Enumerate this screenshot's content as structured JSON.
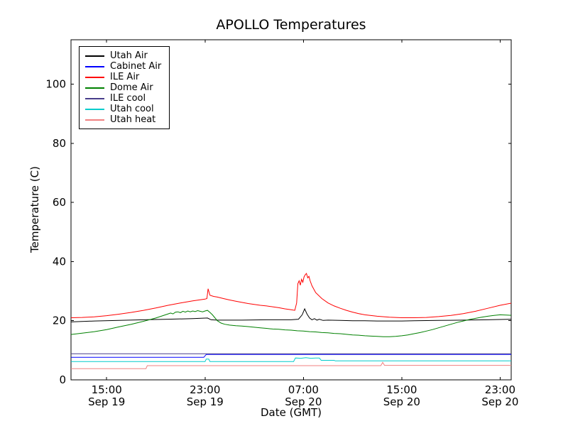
{
  "chart_data": {
    "type": "line",
    "title": "APOLLO Temperatures",
    "xlabel": "Date (GMT)",
    "ylabel": "Temperature (C)",
    "background": "#ffffff",
    "axis_color": "#000000",
    "grid": false,
    "legend_position": "upper left",
    "x_unit": "hours since Sep 19 00:00 GMT",
    "x_range": [
      12.1,
      47.9
    ],
    "y_range": [
      0,
      115
    ],
    "x_ticks": [
      {
        "t": 15,
        "line1": "15:00",
        "line2": "Sep 19"
      },
      {
        "t": 23,
        "line1": "23:00",
        "line2": "Sep 19"
      },
      {
        "t": 31,
        "line1": "07:00",
        "line2": "Sep 20"
      },
      {
        "t": 39,
        "line1": "15:00",
        "line2": "Sep 20"
      },
      {
        "t": 47,
        "line1": "23:00",
        "line2": "Sep 20"
      }
    ],
    "y_ticks": [
      {
        "v": 0,
        "label": "0"
      },
      {
        "v": 20,
        "label": "20"
      },
      {
        "v": 40,
        "label": "40"
      },
      {
        "v": 60,
        "label": "60"
      },
      {
        "v": 80,
        "label": "80"
      },
      {
        "v": 100,
        "label": "100"
      }
    ],
    "series": [
      {
        "name": "Utah Air",
        "color": "#000000",
        "points": [
          [
            12,
            19.6
          ],
          [
            14,
            19.9
          ],
          [
            16,
            20.1
          ],
          [
            18,
            20.3
          ],
          [
            20,
            20.5
          ],
          [
            22,
            20.7
          ],
          [
            23.2,
            20.9
          ],
          [
            23.5,
            20.3
          ],
          [
            24,
            20.2
          ],
          [
            26,
            20.2
          ],
          [
            28,
            20.3
          ],
          [
            30,
            20.3
          ],
          [
            30.6,
            20.5
          ],
          [
            30.9,
            22.0
          ],
          [
            31.1,
            24.0
          ],
          [
            31.3,
            22.2
          ],
          [
            31.5,
            20.9
          ],
          [
            31.7,
            20.3
          ],
          [
            31.9,
            20.7
          ],
          [
            32.1,
            20.2
          ],
          [
            32.3,
            20.5
          ],
          [
            32.6,
            20.1
          ],
          [
            33,
            20.2
          ],
          [
            34,
            20.1
          ],
          [
            35,
            20.0
          ],
          [
            36,
            20.0
          ],
          [
            37,
            19.9
          ],
          [
            38,
            19.9
          ],
          [
            39,
            19.9
          ],
          [
            40,
            20.0
          ],
          [
            42,
            20.1
          ],
          [
            44,
            20.2
          ],
          [
            46,
            20.3
          ],
          [
            48,
            20.5
          ]
        ]
      },
      {
        "name": "Cabinet Air",
        "color": "#0000ff",
        "points": [
          [
            12,
            7.6
          ],
          [
            22.9,
            7.6
          ],
          [
            23.1,
            8.6
          ],
          [
            48,
            8.6
          ]
        ]
      },
      {
        "name": "ILE Air",
        "color": "#ff0000",
        "points": [
          [
            12,
            21.0
          ],
          [
            13,
            21.1
          ],
          [
            14,
            21.3
          ],
          [
            15,
            21.7
          ],
          [
            16,
            22.2
          ],
          [
            17,
            22.8
          ],
          [
            18,
            23.5
          ],
          [
            19,
            24.3
          ],
          [
            20,
            25.2
          ],
          [
            21,
            26.0
          ],
          [
            22,
            26.7
          ],
          [
            23,
            27.3
          ],
          [
            23.15,
            27.5
          ],
          [
            23.25,
            30.8
          ],
          [
            23.4,
            28.6
          ],
          [
            23.7,
            28.2
          ],
          [
            24,
            28.0
          ],
          [
            24.5,
            27.5
          ],
          [
            25,
            27.0
          ],
          [
            25.5,
            26.6
          ],
          [
            26,
            26.2
          ],
          [
            26.5,
            25.8
          ],
          [
            27,
            25.5
          ],
          [
            27.5,
            25.2
          ],
          [
            28,
            25.0
          ],
          [
            28.5,
            24.7
          ],
          [
            29,
            24.4
          ],
          [
            29.5,
            24.0
          ],
          [
            30,
            23.7
          ],
          [
            30.3,
            23.5
          ],
          [
            30.45,
            26.0
          ],
          [
            30.55,
            32.5
          ],
          [
            30.65,
            33.5
          ],
          [
            30.75,
            32.0
          ],
          [
            30.85,
            34.0
          ],
          [
            30.95,
            33.0
          ],
          [
            31.05,
            34.8
          ],
          [
            31.15,
            35.5
          ],
          [
            31.25,
            36.0
          ],
          [
            31.35,
            34.5
          ],
          [
            31.45,
            35.0
          ],
          [
            31.55,
            33.5
          ],
          [
            31.7,
            31.8
          ],
          [
            32,
            29.5
          ],
          [
            32.5,
            27.5
          ],
          [
            33,
            26.0
          ],
          [
            33.5,
            25.0
          ],
          [
            34,
            24.2
          ],
          [
            34.5,
            23.5
          ],
          [
            35,
            22.9
          ],
          [
            35.5,
            22.4
          ],
          [
            36,
            22.0
          ],
          [
            37,
            21.5
          ],
          [
            38,
            21.2
          ],
          [
            39,
            21.0
          ],
          [
            40,
            21.0
          ],
          [
            41,
            21.1
          ],
          [
            42,
            21.4
          ],
          [
            43,
            21.8
          ],
          [
            44,
            22.4
          ],
          [
            45,
            23.2
          ],
          [
            46,
            24.2
          ],
          [
            47,
            25.2
          ],
          [
            48,
            26.0
          ]
        ]
      },
      {
        "name": "Dome Air",
        "color": "#008000",
        "points": [
          [
            12,
            15.3
          ],
          [
            13,
            15.8
          ],
          [
            14,
            16.3
          ],
          [
            15,
            17.0
          ],
          [
            16,
            17.9
          ],
          [
            17,
            18.8
          ],
          [
            18,
            19.8
          ],
          [
            19,
            20.9
          ],
          [
            19.5,
            21.6
          ],
          [
            20,
            22.3
          ],
          [
            20.2,
            22.6
          ],
          [
            20.4,
            22.3
          ],
          [
            20.6,
            22.9
          ],
          [
            20.8,
            23.0
          ],
          [
            21,
            22.7
          ],
          [
            21.2,
            23.2
          ],
          [
            21.4,
            22.9
          ],
          [
            21.6,
            23.3
          ],
          [
            21.8,
            23.0
          ],
          [
            22,
            23.3
          ],
          [
            22.2,
            23.1
          ],
          [
            22.4,
            23.4
          ],
          [
            22.6,
            23.2
          ],
          [
            22.8,
            23.0
          ],
          [
            23,
            23.3
          ],
          [
            23.2,
            23.5
          ],
          [
            23.4,
            22.8
          ],
          [
            23.6,
            22.0
          ],
          [
            23.8,
            21.0
          ],
          [
            24,
            20.0
          ],
          [
            24.3,
            19.2
          ],
          [
            24.6,
            18.8
          ],
          [
            25,
            18.5
          ],
          [
            25.5,
            18.3
          ],
          [
            26,
            18.2
          ],
          [
            26.5,
            18.0
          ],
          [
            27,
            17.8
          ],
          [
            27.5,
            17.6
          ],
          [
            28,
            17.4
          ],
          [
            28.5,
            17.2
          ],
          [
            29,
            17.1
          ],
          [
            29.5,
            16.9
          ],
          [
            30,
            16.8
          ],
          [
            30.5,
            16.6
          ],
          [
            31,
            16.5
          ],
          [
            31.5,
            16.3
          ],
          [
            32,
            16.2
          ],
          [
            32.5,
            16.0
          ],
          [
            33,
            15.9
          ],
          [
            33.5,
            15.7
          ],
          [
            34,
            15.6
          ],
          [
            34.5,
            15.4
          ],
          [
            35,
            15.2
          ],
          [
            35.5,
            15.1
          ],
          [
            36,
            14.9
          ],
          [
            36.5,
            14.8
          ],
          [
            37,
            14.7
          ],
          [
            37.5,
            14.6
          ],
          [
            38,
            14.6
          ],
          [
            38.5,
            14.7
          ],
          [
            39,
            14.9
          ],
          [
            39.5,
            15.2
          ],
          [
            40,
            15.6
          ],
          [
            40.5,
            16.0
          ],
          [
            41,
            16.5
          ],
          [
            41.5,
            17.0
          ],
          [
            42,
            17.6
          ],
          [
            42.5,
            18.2
          ],
          [
            43,
            18.8
          ],
          [
            43.5,
            19.4
          ],
          [
            44,
            19.9
          ],
          [
            44.5,
            20.4
          ],
          [
            45,
            20.8
          ],
          [
            45.5,
            21.2
          ],
          [
            46,
            21.5
          ],
          [
            46.5,
            21.8
          ],
          [
            47,
            22.0
          ],
          [
            47.5,
            21.9
          ],
          [
            48,
            21.8
          ]
        ]
      },
      {
        "name": "ILE cool",
        "color": "#483d8b",
        "points": [
          [
            12,
            8.8
          ],
          [
            48,
            8.8
          ]
        ]
      },
      {
        "name": "Utah cool",
        "color": "#00cccc",
        "points": [
          [
            12,
            6.2
          ],
          [
            23.0,
            6.2
          ],
          [
            23.1,
            7.0
          ],
          [
            23.3,
            7.0
          ],
          [
            23.4,
            6.2
          ],
          [
            30.2,
            6.2
          ],
          [
            30.35,
            7.4
          ],
          [
            30.8,
            7.3
          ],
          [
            31.2,
            7.5
          ],
          [
            31.6,
            7.3
          ],
          [
            32.0,
            7.4
          ],
          [
            32.3,
            7.4
          ],
          [
            32.45,
            6.6
          ],
          [
            33.5,
            6.6
          ],
          [
            33.6,
            6.4
          ],
          [
            48,
            6.4
          ]
        ]
      },
      {
        "name": "Utah heat",
        "color": "#f08080",
        "points": [
          [
            12,
            3.8
          ],
          [
            18.2,
            3.8
          ],
          [
            18.3,
            4.8
          ],
          [
            37.3,
            4.8
          ],
          [
            37.45,
            5.9
          ],
          [
            37.6,
            4.9
          ],
          [
            48,
            4.9
          ]
        ]
      }
    ]
  }
}
